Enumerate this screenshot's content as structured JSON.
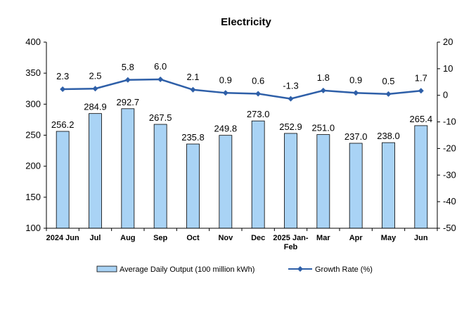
{
  "chart_data": {
    "type": "bar",
    "title": "Electricity",
    "categories": [
      "2024 Jun",
      "Jul",
      "Aug",
      "Sep",
      "Oct",
      "Nov",
      "Dec",
      "2025 Jan-Feb",
      "Mar",
      "Apr",
      "May",
      "Jun"
    ],
    "series": [
      {
        "name": "Average Daily Output (100 million kWh)",
        "type": "bar",
        "axis": "left",
        "color": "#a9d3f5",
        "values": [
          256.2,
          284.9,
          292.7,
          267.5,
          235.8,
          249.8,
          273.0,
          252.9,
          251.0,
          237.0,
          238.0,
          265.4
        ],
        "labels": [
          "256.2",
          "284.9",
          "292.7",
          "267.5",
          "235.8",
          "249.8",
          "273.0",
          "252.9",
          "251.0",
          "237.0",
          "238.0",
          "265.4"
        ]
      },
      {
        "name": "Growth Rate (%)",
        "type": "line",
        "axis": "right",
        "color": "#2e5fa8",
        "values": [
          2.3,
          2.5,
          5.8,
          6.0,
          2.1,
          0.9,
          0.6,
          -1.3,
          1.8,
          0.9,
          0.5,
          1.7
        ],
        "labels": [
          "2.3",
          "2.5",
          "5.8",
          "6.0",
          "2.1",
          "0.9",
          "0.6",
          "-1.3",
          "1.8",
          "0.9",
          "0.5",
          "1.7"
        ]
      }
    ],
    "y_left": {
      "min": 100,
      "max": 400,
      "ticks": [
        "100",
        "150",
        "200",
        "250",
        "300",
        "350",
        "400"
      ]
    },
    "y_right": {
      "min": -50,
      "max": 20,
      "ticks": [
        "-50",
        "-40",
        "-30",
        "-20",
        "-10",
        "0",
        "10",
        "20"
      ]
    },
    "grid": false,
    "legend_position": "bottom"
  }
}
